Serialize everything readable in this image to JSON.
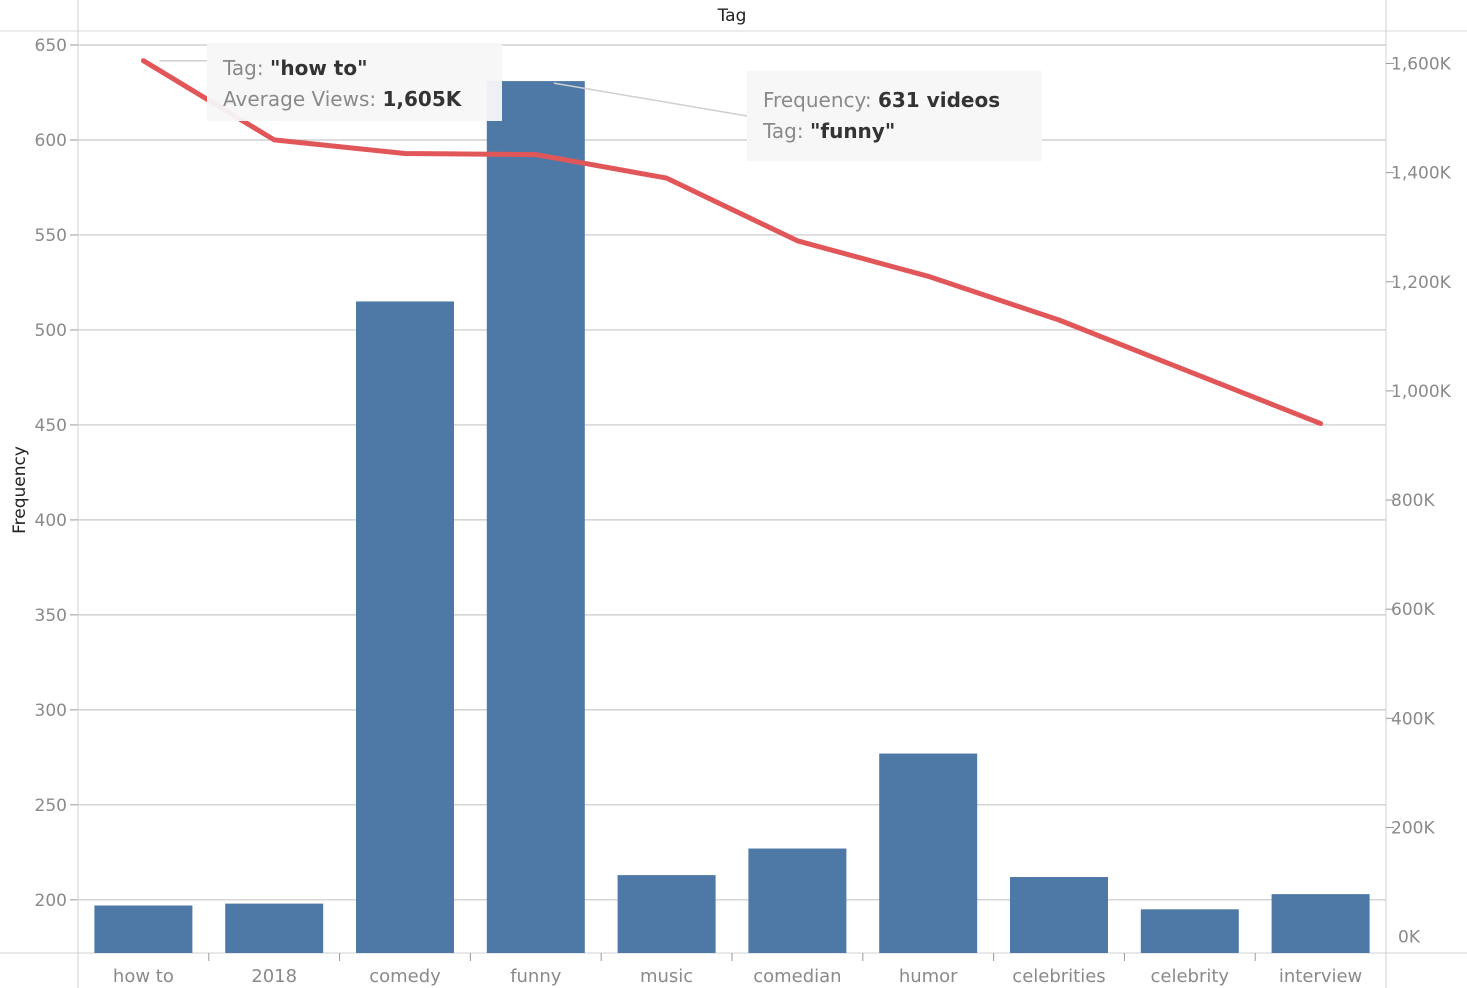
{
  "chart_data": {
    "type": "bar",
    "title": "Tag",
    "xlabel": "",
    "ylabel": "Frequency",
    "categories": [
      "how to",
      "2018",
      "comedy",
      "funny",
      "music",
      "comedian",
      "humor",
      "celebrities",
      "celebrity",
      "interview"
    ],
    "series": [
      {
        "type": "bar",
        "axis": "left",
        "color": "#4e79a7",
        "values": [
          197,
          198,
          515,
          631,
          213,
          227,
          277,
          212,
          195,
          203
        ]
      },
      {
        "type": "line",
        "axis": "right",
        "color": "#e15759",
        "values": [
          1605,
          1460,
          1435,
          1433,
          1390,
          1275,
          1210,
          1130,
          1035,
          940
        ]
      }
    ],
    "ylim_left": [
      172,
      650
    ],
    "yticks_left": [
      "200",
      "250",
      "300",
      "350",
      "400",
      "450",
      "500",
      "550",
      "600",
      "650"
    ],
    "ylim_right": [
      -30,
      1665
    ],
    "yticks_right": [
      "0K",
      "200K",
      "400K",
      "600K",
      "800K",
      "1,000K",
      "1,200K",
      "1,400K",
      "1,600K"
    ],
    "grid": true,
    "annotations": [
      {
        "target": "how to",
        "lines": [
          {
            "label": "Tag: ",
            "value": "\"how to\""
          },
          {
            "label": "Average Views: ",
            "value": "1,605K"
          }
        ]
      },
      {
        "target": "funny",
        "lines": [
          {
            "label": "Frequency: ",
            "value": "631 videos"
          },
          {
            "label": "Tag: ",
            "value": "\"funny\""
          }
        ]
      }
    ]
  }
}
